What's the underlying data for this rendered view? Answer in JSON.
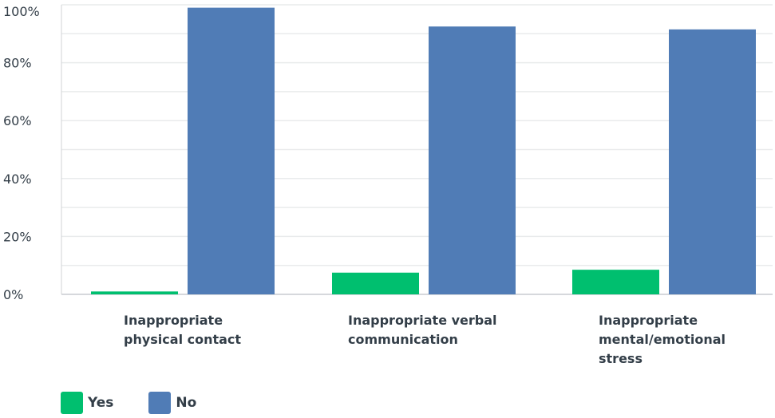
{
  "chart_data": {
    "type": "bar",
    "categories": [
      "Inappropriate physical contact",
      "Inappropriate verbal communication",
      "Inappropriate mental/emotional stress"
    ],
    "series": [
      {
        "name": "Yes",
        "color": "#00bf6f",
        "values": [
          1,
          7.5,
          8.5
        ]
      },
      {
        "name": "No",
        "color": "#507cb6",
        "values": [
          99,
          92.5,
          91.5
        ]
      }
    ],
    "ylim": [
      0,
      100
    ],
    "yticks": [
      0,
      20,
      40,
      60,
      80,
      100
    ],
    "ytick_labels": [
      "0%",
      "20%",
      "40%",
      "60%",
      "80%",
      "100%"
    ],
    "grid": true,
    "legend_position": "bottom-left"
  }
}
